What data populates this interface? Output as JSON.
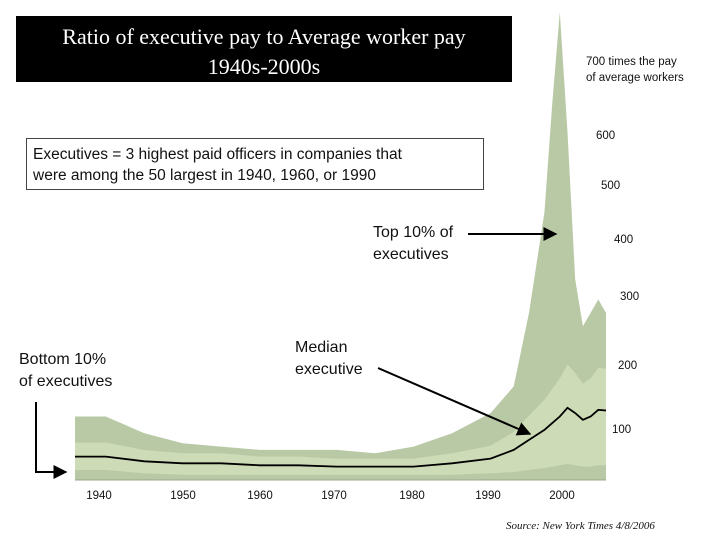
{
  "chart_data": {
    "type": "area",
    "title_line1": "Ratio of executive pay to Average worker pay",
    "title_line2": "1940s-2000s",
    "definition_line1": "Executives = 3 highest paid officers in companies that",
    "definition_line2": "were among the 50 largest in 1940, 1960, or 1990",
    "x": [
      1936,
      1940,
      1945,
      1950,
      1955,
      1960,
      1965,
      1970,
      1975,
      1980,
      1985,
      1990,
      1993,
      1995,
      1997,
      1998,
      1999,
      2000,
      2001,
      2002,
      2003,
      2004,
      2005
    ],
    "series": [
      {
        "values": [
          95,
          95,
          70,
          55,
          50,
          45,
          45,
          45,
          40,
          50,
          70,
          100,
          140,
          250,
          400,
          560,
          700,
          520,
          300,
          230,
          250,
          270,
          250
        ]
      },
      {
        "values": [
          35,
          35,
          28,
          25,
          25,
          22,
          22,
          20,
          20,
          20,
          25,
          32,
          45,
          60,
          75,
          85,
          95,
          108,
          100,
          90,
          95,
          105,
          104
        ]
      },
      {
        "values": [
          15,
          15,
          10,
          8,
          8,
          8,
          8,
          8,
          8,
          8,
          8,
          10,
          12,
          15,
          18,
          20,
          22,
          24,
          22,
          20,
          20,
          22,
          22
        ]
      }
    ],
    "xticks": [
      "1940",
      "1950",
      "1960",
      "1970",
      "1980",
      "1990",
      "2000"
    ],
    "yticks": [
      "100",
      "200",
      "300",
      "400",
      "500",
      "600"
    ],
    "ytop_label_line1": "700 times the pay",
    "ytop_label_line2": "of average workers",
    "xlim": [
      1936,
      2005
    ],
    "ylim": [
      0,
      700
    ],
    "colors": {
      "outer_band": "#b9c9a6",
      "inner_band": "#cddcb6",
      "median": "#000000"
    }
  },
  "annotations": {
    "top": [
      "Top 10% of",
      "executives"
    ],
    "median": [
      "Median",
      "executive"
    ],
    "bottom": [
      "Bottom 10%",
      "of executives"
    ]
  },
  "source": "Source: New York Times 4/8/2006"
}
